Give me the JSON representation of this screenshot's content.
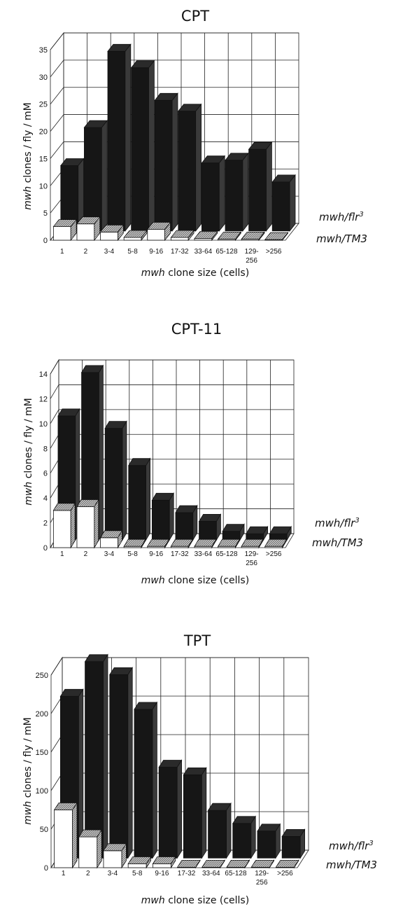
{
  "charts": [
    {
      "title": "CPT",
      "ylabel_italic": "mwh",
      "ylabel_rest": " clones / fly / mM",
      "yticks": [
        "0",
        "5",
        "10",
        "15",
        "20",
        "25",
        "30",
        "35"
      ]
    },
    {
      "title": "CPT-11",
      "ylabel_italic": "mwh",
      "ylabel_rest": " clones / fly / mM",
      "yticks": [
        "0",
        "2",
        "4",
        "6",
        "8",
        "10",
        "12",
        "14"
      ]
    },
    {
      "title": "TPT",
      "ylabel_italic": "mwh",
      "ylabel_rest": " clones / fly / mM",
      "yticks": [
        "0",
        "50",
        "100",
        "150",
        "200",
        "250"
      ]
    }
  ],
  "xlabel_italic": "mwh",
  "xlabel_rest": " clone size (cells)",
  "categories": [
    "1",
    "2",
    "3-4",
    "5-8",
    "9-16",
    "17-32",
    "33-64",
    "65-128",
    "129-256",
    ">256"
  ],
  "series_labels": {
    "flr_base": "mwh/flr",
    "flr_sup": "3",
    "tm3": "mwh/TM3"
  },
  "colors": {
    "flr": "#161616",
    "tm3": "#ffffff",
    "hatch": "#9a9a9a"
  },
  "chart_data": [
    {
      "type": "bar",
      "title": "CPT",
      "categories": [
        "1",
        "2",
        "3-4",
        "5-8",
        "9-16",
        "17-32",
        "33-64",
        "65-128",
        "129-256",
        ">256"
      ],
      "xlabel": "mwh clone size (cells)",
      "ylabel": "mwh clones / fly / mM",
      "ylim": [
        0,
        35
      ],
      "series": [
        {
          "name": "mwh/flr3",
          "values": [
            12,
            19,
            33,
            30,
            24,
            22,
            12.5,
            13,
            15,
            9
          ]
        },
        {
          "name": "mwh/TM3",
          "values": [
            2.5,
            3,
            1.5,
            0.5,
            2,
            0.5,
            0.3,
            0.2,
            0.2,
            0.1
          ]
        }
      ],
      "grid": true,
      "legend": "right"
    },
    {
      "type": "bar",
      "title": "CPT-11",
      "categories": [
        "1",
        "2",
        "3-4",
        "5-8",
        "9-16",
        "17-32",
        "33-64",
        "65-128",
        "129-256",
        ">256"
      ],
      "xlabel": "mwh clone size (cells)",
      "ylabel": "mwh clones / fly / mM",
      "ylim": [
        0,
        14
      ],
      "series": [
        {
          "name": "mwh/flr3",
          "values": [
            10,
            13.5,
            9,
            6,
            3.2,
            2.2,
            1.5,
            0.7,
            0.5,
            0.5
          ]
        },
        {
          "name": "mwh/TM3",
          "values": [
            3,
            3.3,
            0.8,
            0.1,
            0.1,
            0.1,
            0.1,
            0.1,
            0.1,
            0.1
          ]
        }
      ],
      "grid": true,
      "legend": "right"
    },
    {
      "type": "bar",
      "title": "TPT",
      "categories": [
        "1",
        "2",
        "3-4",
        "5-8",
        "9-16",
        "17-32",
        "33-64",
        "65-128",
        "129-256",
        ">256"
      ],
      "xlabel": "mwh clone size (cells)",
      "ylabel": "mwh clones / fly / mM",
      "ylim": [
        0,
        250
      ],
      "series": [
        {
          "name": "mwh/flr3",
          "values": [
            210,
            255,
            238,
            193,
            118,
            108,
            62,
            45,
            35,
            28
          ]
        },
        {
          "name": "mwh/TM3",
          "values": [
            75,
            40,
            22,
            5,
            5,
            0.5,
            0.5,
            0.5,
            0.5,
            0.5
          ]
        }
      ],
      "grid": true,
      "legend": "right"
    }
  ]
}
